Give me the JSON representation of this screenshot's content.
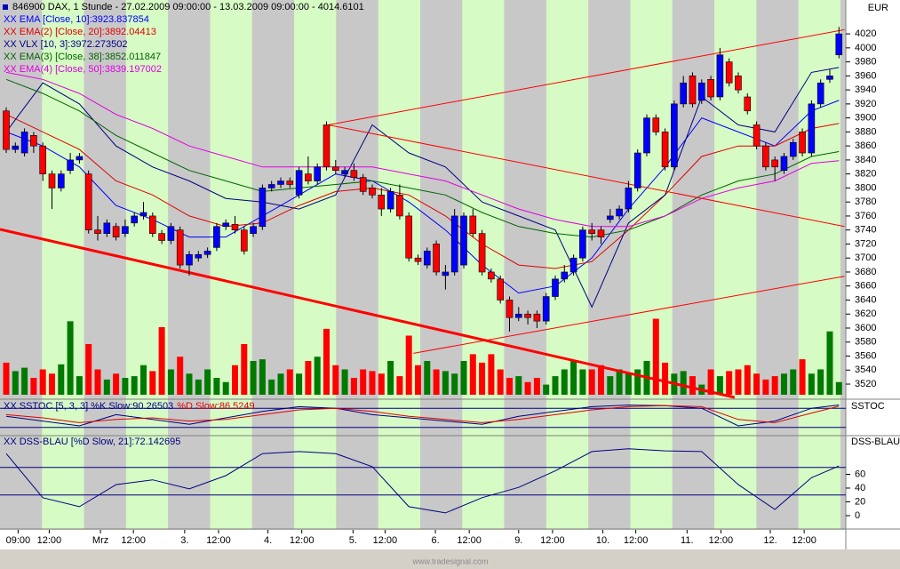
{
  "chart_data": [
    {
      "type": "candlestick",
      "title": "846900 DAX, 1 Stunde - 27.02.2009 09:00:00 - 13.03.2009 09:00:00 - 4014.6101",
      "unit": "EUR",
      "open": [
        3910,
        3855,
        3850,
        3875,
        3860,
        3820,
        3800,
        3825,
        3840,
        3820,
        3740,
        3735,
        3745,
        3735,
        3750,
        3760,
        3760,
        3735,
        3725,
        3740,
        3690,
        3700,
        3705,
        3715,
        3745,
        3748,
        3740,
        3735,
        3745,
        3800,
        3805,
        3810,
        3790,
        3820,
        3810,
        3890,
        3830,
        3820,
        3825,
        3815,
        3800,
        3790,
        3770,
        3790,
        3760,
        3700,
        3690,
        3720,
        3675,
        3680,
        3690,
        3760,
        3735,
        3680,
        3670,
        3640,
        3615,
        3620,
        3620,
        3610,
        3645,
        3670,
        3680,
        3700,
        3740,
        3740,
        3755,
        3760,
        3770,
        3800,
        3850,
        3900,
        3880,
        3830,
        3920,
        3960,
        3925,
        3955,
        3930,
        3980,
        3960,
        3930,
        3890,
        3860,
        3840,
        3825,
        3845,
        3880,
        3850,
        3920,
        3955,
        3990
      ],
      "high": [
        3915,
        3865,
        3885,
        3880,
        3865,
        3825,
        3825,
        3850,
        3850,
        3825,
        3760,
        3755,
        3750,
        3755,
        3765,
        3780,
        3765,
        3740,
        3750,
        3745,
        3710,
        3710,
        3715,
        3750,
        3755,
        3760,
        3745,
        3750,
        3805,
        3810,
        3815,
        3815,
        3830,
        3845,
        3835,
        3895,
        3840,
        3830,
        3835,
        3820,
        3805,
        3800,
        3800,
        3805,
        3765,
        3705,
        3715,
        3725,
        3690,
        3770,
        3765,
        3770,
        3740,
        3685,
        3675,
        3645,
        3630,
        3625,
        3625,
        3650,
        3675,
        3690,
        3705,
        3745,
        3750,
        3745,
        3770,
        3775,
        3810,
        3855,
        3905,
        3905,
        3885,
        3925,
        3960,
        3965,
        3955,
        3960,
        4000,
        3985,
        3965,
        3935,
        3895,
        3865,
        3845,
        3850,
        3870,
        3885,
        3925,
        3955,
        3970,
        4030
      ],
      "low": [
        3850,
        3850,
        3845,
        3850,
        3810,
        3770,
        3795,
        3820,
        3835,
        3735,
        3725,
        3730,
        3725,
        3730,
        3745,
        3755,
        3730,
        3720,
        3720,
        3685,
        3675,
        3695,
        3700,
        3710,
        3740,
        3735,
        3705,
        3730,
        3740,
        3795,
        3800,
        3800,
        3785,
        3805,
        3805,
        3825,
        3820,
        3815,
        3810,
        3790,
        3785,
        3760,
        3765,
        3755,
        3695,
        3690,
        3685,
        3675,
        3655,
        3675,
        3685,
        3730,
        3675,
        3665,
        3635,
        3595,
        3610,
        3605,
        3600,
        3605,
        3640,
        3665,
        3675,
        3695,
        3725,
        3720,
        3750,
        3755,
        3765,
        3795,
        3845,
        3875,
        3825,
        3825,
        3915,
        3915,
        3920,
        3925,
        3925,
        3945,
        3935,
        3905,
        3855,
        3825,
        3810,
        3820,
        3840,
        3845,
        3845,
        3915,
        3950,
        3985
      ],
      "close": [
        3855,
        3860,
        3880,
        3860,
        3820,
        3800,
        3820,
        3840,
        3845,
        3740,
        3735,
        3750,
        3730,
        3745,
        3760,
        3765,
        3735,
        3725,
        3745,
        3690,
        3705,
        3705,
        3710,
        3745,
        3750,
        3740,
        3710,
        3745,
        3800,
        3805,
        3810,
        3805,
        3825,
        3810,
        3830,
        3830,
        3825,
        3825,
        3815,
        3795,
        3790,
        3770,
        3795,
        3760,
        3700,
        3695,
        3710,
        3680,
        3680,
        3760,
        3760,
        3735,
        3680,
        3670,
        3640,
        3615,
        3620,
        3615,
        3610,
        3645,
        3670,
        3680,
        3700,
        3740,
        3735,
        3730,
        3760,
        3770,
        3800,
        3850,
        3900,
        3880,
        3830,
        3920,
        3950,
        3920,
        3950,
        3930,
        3990,
        3950,
        3940,
        3910,
        3860,
        3830,
        3830,
        3845,
        3865,
        3850,
        3920,
        3950,
        3960,
        4020
      ],
      "volume": [
        38,
        28,
        32,
        20,
        30,
        25,
        36,
        87,
        22,
        60,
        30,
        18,
        25,
        20,
        22,
        35,
        28,
        80,
        30,
        45,
        25,
        18,
        30,
        20,
        15,
        35,
        60,
        40,
        42,
        18,
        25,
        30,
        25,
        40,
        45,
        78,
        35,
        30,
        20,
        30,
        28,
        25,
        40,
        22,
        70,
        35,
        40,
        30,
        28,
        25,
        40,
        48,
        38,
        48,
        30,
        20,
        22,
        15,
        20,
        12,
        22,
        30,
        40,
        30,
        30,
        35,
        22,
        30,
        25,
        30,
        40,
        90,
        38,
        25,
        28,
        22,
        12,
        30,
        22,
        28,
        30,
        35,
        25,
        18,
        22,
        25,
        30,
        42,
        25,
        30,
        75,
        15
      ],
      "up_color": "#0000ff",
      "down_color": "#ff0000",
      "volume_up_color": "#007a00",
      "volume_down_color": "#ff0000",
      "series": [
        {
          "name": "XX EMA [Close, 10]:3923.837854",
          "color": "#0000ff",
          "x": [
            0,
            4,
            8,
            12,
            16,
            20,
            24,
            28,
            32,
            36,
            40,
            44,
            48,
            52,
            56,
            60,
            64,
            68,
            72,
            76,
            80,
            84,
            88,
            91
          ],
          "values": [
            3880,
            3860,
            3830,
            3775,
            3755,
            3730,
            3730,
            3760,
            3790,
            3820,
            3810,
            3780,
            3740,
            3690,
            3650,
            3660,
            3700,
            3770,
            3830,
            3900,
            3880,
            3860,
            3910,
            3925
          ]
        },
        {
          "name": "XX EMA(2) [Close, 20]:3892.04413",
          "color": "#e00000",
          "x": [
            0,
            4,
            8,
            12,
            16,
            20,
            24,
            28,
            32,
            36,
            40,
            44,
            48,
            52,
            56,
            60,
            64,
            68,
            72,
            76,
            80,
            84,
            88,
            91
          ],
          "values": [
            3905,
            3880,
            3855,
            3810,
            3790,
            3760,
            3745,
            3750,
            3775,
            3795,
            3800,
            3790,
            3760,
            3720,
            3690,
            3685,
            3695,
            3740,
            3790,
            3845,
            3860,
            3860,
            3885,
            3892
          ]
        },
        {
          "name": "XX VLX [10, 3]:3972.273502",
          "color": "#000080",
          "x": [
            0,
            4,
            8,
            12,
            16,
            20,
            24,
            28,
            32,
            36,
            40,
            44,
            48,
            52,
            56,
            60,
            64,
            68,
            72,
            76,
            80,
            84,
            88,
            91
          ],
          "values": [
            3880,
            3950,
            3920,
            3860,
            3830,
            3810,
            3785,
            3780,
            3770,
            3790,
            3890,
            3850,
            3830,
            3780,
            3760,
            3740,
            3630,
            3750,
            3790,
            3930,
            3890,
            3880,
            3965,
            3972
          ]
        },
        {
          "name": "XX EMA(3) [Close, 38]:3852.011847",
          "color": "#006400",
          "x": [
            0,
            4,
            8,
            12,
            16,
            20,
            24,
            28,
            32,
            36,
            40,
            44,
            48,
            52,
            56,
            60,
            64,
            68,
            72,
            76,
            80,
            84,
            88,
            91
          ],
          "values": [
            3955,
            3935,
            3910,
            3875,
            3850,
            3825,
            3810,
            3795,
            3800,
            3805,
            3810,
            3800,
            3790,
            3765,
            3745,
            3735,
            3730,
            3740,
            3760,
            3790,
            3810,
            3820,
            3845,
            3852
          ]
        },
        {
          "name": "XX EMA(4) [Close, 50]:3839.197002",
          "color": "#e000e0",
          "x": [
            0,
            4,
            8,
            12,
            16,
            20,
            24,
            28,
            32,
            36,
            40,
            44,
            48,
            52,
            56,
            60,
            64,
            68,
            72,
            76,
            80,
            84,
            88,
            91
          ],
          "values": [
            3965,
            3955,
            3935,
            3905,
            3885,
            3860,
            3845,
            3830,
            3830,
            3830,
            3830,
            3820,
            3810,
            3790,
            3770,
            3755,
            3745,
            3745,
            3760,
            3785,
            3800,
            3810,
            3835,
            3839
          ]
        }
      ],
      "trendlines": [
        {
          "color": "#ff0000",
          "width": 3,
          "x": [
            -0.68,
            79.6
          ],
          "values": [
            3741,
            3501
          ]
        },
        {
          "color": "#ff0000",
          "width": 1,
          "x": [
            35.2,
            91.6
          ],
          "values": [
            3890,
            4026
          ]
        },
        {
          "color": "#ff0000",
          "width": 1,
          "x": [
            35.2,
            91.6
          ],
          "values": [
            3890,
            3745
          ]
        },
        {
          "color": "#ff0000",
          "width": 1,
          "x": [
            44.5,
            91.6
          ],
          "values": [
            3564,
            3674
          ]
        }
      ],
      "xlim": [
        -0.68,
        91.75
      ],
      "ylim": [
        3501,
        4062
      ],
      "yticks": [
        3520,
        3540,
        3560,
        3580,
        3600,
        3620,
        3640,
        3660,
        3680,
        3700,
        3720,
        3740,
        3760,
        3780,
        3800,
        3820,
        3840,
        3860,
        3880,
        3900,
        3920,
        3940,
        3960,
        3980,
        4000,
        4020
      ],
      "xticks": [
        {
          "value": 1.3,
          "label": "09:00"
        },
        {
          "value": 4.7,
          "label": "12:00"
        },
        {
          "value": 10.3,
          "label": "Mrz"
        },
        {
          "value": 13.9,
          "label": "12:00"
        },
        {
          "value": 19.5,
          "label": "3."
        },
        {
          "value": 23.2,
          "label": "12:00"
        },
        {
          "value": 28.6,
          "label": "4."
        },
        {
          "value": 32.3,
          "label": "12:00"
        },
        {
          "value": 37.9,
          "label": "5."
        },
        {
          "value": 41.4,
          "label": "12:00"
        },
        {
          "value": 46.9,
          "label": "6."
        },
        {
          "value": 50.6,
          "label": "12:00"
        },
        {
          "value": 56,
          "label": "9."
        },
        {
          "value": 59.7,
          "label": "12:00"
        },
        {
          "value": 65.2,
          "label": "10."
        },
        {
          "value": 68.8,
          "label": "12:00"
        },
        {
          "value": 74.4,
          "label": "11."
        },
        {
          "value": 78.1,
          "label": "12:00"
        },
        {
          "value": 83.5,
          "label": "12."
        },
        {
          "value": 87.2,
          "label": "12:00"
        }
      ]
    },
    {
      "type": "line",
      "label": "SSTOC",
      "levels": [
        20,
        80
      ],
      "level_color": "#000080",
      "ylim": [
        0,
        100
      ],
      "xlim": [
        -0.68,
        91.75
      ],
      "series": [
        {
          "name": "XX SSTOC [5, 3, 3] %K Slow:90.26503",
          "color": "#000080",
          "x": [
            0,
            4,
            8,
            12,
            16,
            20,
            24,
            28,
            32,
            36,
            40,
            44,
            48,
            52,
            56,
            60,
            64,
            68,
            72,
            76,
            80,
            84,
            88,
            91
          ],
          "values": [
            55,
            40,
            25,
            60,
            45,
            30,
            50,
            70,
            85,
            80,
            60,
            50,
            40,
            30,
            55,
            70,
            85,
            90,
            88,
            80,
            25,
            40,
            80,
            90.26503
          ]
        },
        {
          "name": "%D Slow:86.5249",
          "color": "#e00000",
          "x": [
            0,
            4,
            8,
            12,
            16,
            20,
            24,
            28,
            32,
            36,
            40,
            44,
            48,
            52,
            56,
            60,
            64,
            68,
            72,
            76,
            80,
            84,
            88,
            91
          ],
          "values": [
            60,
            50,
            35,
            45,
            50,
            40,
            45,
            60,
            75,
            80,
            70,
            55,
            45,
            35,
            45,
            60,
            75,
            85,
            88,
            85,
            45,
            35,
            65,
            86.5249
          ]
        }
      ]
    },
    {
      "type": "line",
      "label": "DSS-BLAU",
      "levels": [
        30,
        70
      ],
      "level_color": "#000080",
      "ylim": [
        -15.5,
        113.5
      ],
      "yticks": [
        0,
        20,
        40,
        60
      ],
      "xlim": [
        -0.68,
        91.75
      ],
      "series": [
        {
          "name": "XX DSS-BLAU [%D Slow, 21]:72.142695",
          "color": "#000080",
          "x": [
            0,
            4,
            8,
            12,
            16,
            20,
            24,
            28,
            32,
            36,
            40,
            44,
            48,
            52,
            56,
            60,
            64,
            68,
            72,
            76,
            80,
            84,
            88,
            91
          ],
          "values": [
            90,
            26,
            13,
            45,
            52,
            39,
            58,
            90,
            93,
            90,
            71,
            13,
            4,
            26,
            41,
            65,
            93,
            97,
            94,
            93,
            45,
            9,
            55,
            72.142695
          ]
        }
      ]
    }
  ],
  "footer": "www.tradesignal.com"
}
